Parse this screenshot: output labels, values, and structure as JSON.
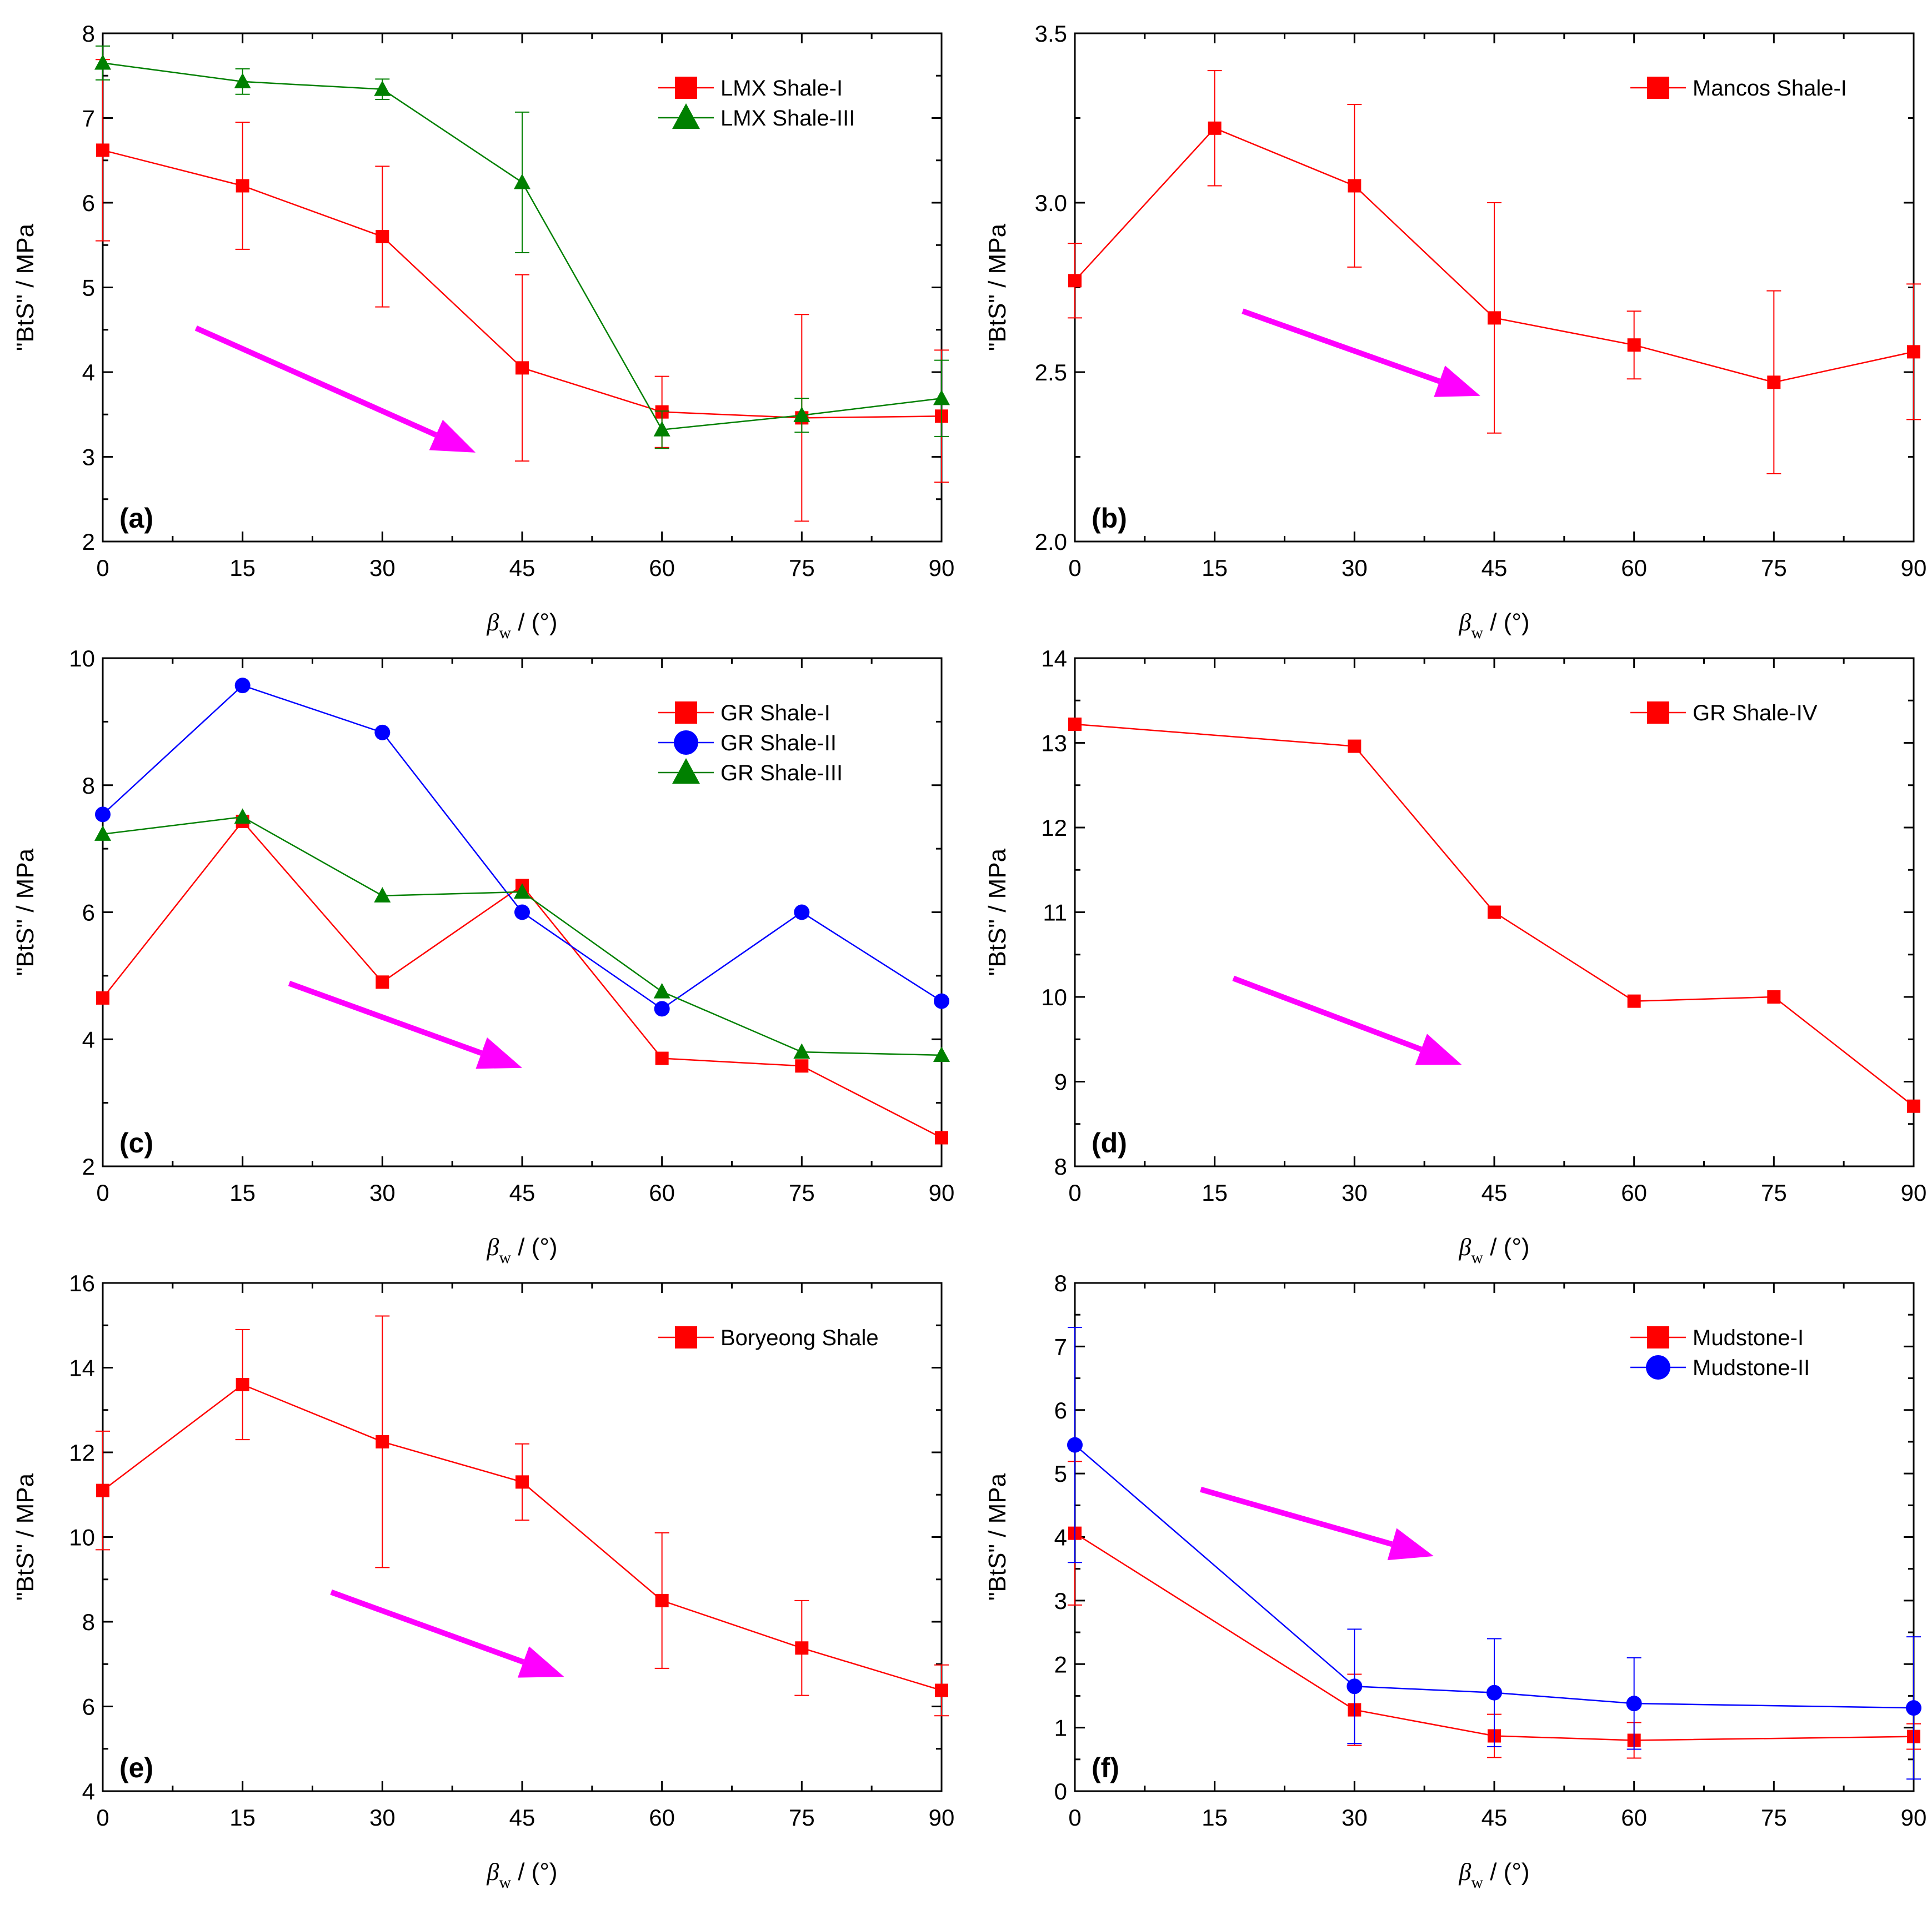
{
  "figure": {
    "x_axis_label": {
      "symbol": "β",
      "subscript": "w",
      "unit": " / (°)"
    },
    "y_axis_label": "\"BtS\" / MPa",
    "arrow_color": "#ff00ff"
  },
  "chart_data": [
    {
      "type": "line",
      "panel_label": "(a)",
      "xlim": [
        0,
        90
      ],
      "xticks": [
        0,
        15,
        30,
        45,
        60,
        75,
        90
      ],
      "ylim": [
        2,
        8
      ],
      "yticks": [
        2,
        3,
        4,
        5,
        6,
        7,
        8
      ],
      "ytick_labels": [
        "2",
        "3",
        "4",
        "5",
        "6",
        "7",
        "8"
      ],
      "legend_position": "top-right",
      "series": [
        {
          "name": "LMX Shale-I",
          "color": "#ff0000",
          "marker": "square",
          "x": [
            0,
            15,
            30,
            45,
            60,
            75,
            90
          ],
          "y": [
            6.62,
            6.2,
            5.6,
            4.05,
            3.53,
            3.46,
            3.48
          ],
          "err": [
            1.07,
            0.75,
            0.83,
            1.1,
            0.42,
            1.22,
            0.78
          ]
        },
        {
          "name": "LMX Shale-III",
          "color": "#008000",
          "marker": "triangle",
          "x": [
            0,
            15,
            30,
            45,
            60,
            75,
            90
          ],
          "y": [
            7.65,
            7.43,
            7.34,
            6.24,
            3.32,
            3.49,
            3.69
          ],
          "err": [
            0.2,
            0.15,
            0.12,
            0.83,
            0.22,
            0.2,
            0.45
          ]
        }
      ],
      "trend_arrow": [
        [
          10,
          4.52
        ],
        [
          40,
          3.05
        ]
      ]
    },
    {
      "type": "line",
      "panel_label": "(b)",
      "xlim": [
        0,
        90
      ],
      "xticks": [
        0,
        15,
        30,
        45,
        60,
        75,
        90
      ],
      "ylim": [
        2.0,
        3.5
      ],
      "yticks": [
        2.0,
        2.5,
        3.0,
        3.5
      ],
      "ytick_labels": [
        "2.0",
        "2.5",
        "3.0",
        "3.5"
      ],
      "legend_position": "top-right",
      "series": [
        {
          "name": "Mancos Shale-I",
          "color": "#ff0000",
          "marker": "square",
          "x": [
            0,
            15,
            30,
            45,
            60,
            75,
            90
          ],
          "y": [
            2.77,
            3.22,
            3.05,
            2.66,
            2.58,
            2.47,
            2.56
          ],
          "err": [
            0.11,
            0.17,
            0.24,
            0.34,
            0.1,
            0.27,
            0.2
          ]
        }
      ],
      "trend_arrow": [
        [
          18,
          2.68
        ],
        [
          43.5,
          2.43
        ]
      ]
    },
    {
      "type": "line",
      "panel_label": "(c)",
      "xlim": [
        0,
        90
      ],
      "xticks": [
        0,
        15,
        30,
        45,
        60,
        75,
        90
      ],
      "ylim": [
        2,
        10
      ],
      "yticks": [
        2,
        4,
        6,
        8,
        10
      ],
      "ytick_labels": [
        "2",
        "4",
        "6",
        "8",
        "10"
      ],
      "legend_position": "top-right",
      "series": [
        {
          "name": "GR Shale-I",
          "color": "#ff0000",
          "marker": "square",
          "x": [
            0,
            15,
            30,
            45,
            60,
            75,
            90
          ],
          "y": [
            4.65,
            7.43,
            4.9,
            6.42,
            3.7,
            3.58,
            2.45
          ]
        },
        {
          "name": "GR Shale-II",
          "color": "#0000ff",
          "marker": "circle",
          "x": [
            0,
            15,
            30,
            45,
            60,
            75,
            90
          ],
          "y": [
            7.54,
            9.57,
            8.83,
            6.0,
            4.48,
            6.0,
            4.6
          ]
        },
        {
          "name": "GR Shale-III",
          "color": "#008000",
          "marker": "triangle",
          "x": [
            0,
            15,
            30,
            45,
            60,
            75,
            90
          ],
          "y": [
            7.23,
            7.5,
            6.26,
            6.32,
            4.75,
            3.8,
            3.75
          ]
        }
      ],
      "trend_arrow": [
        [
          20,
          4.88
        ],
        [
          45,
          3.55
        ]
      ]
    },
    {
      "type": "line",
      "panel_label": "(d)",
      "xlim": [
        0,
        90
      ],
      "xticks": [
        0,
        15,
        30,
        45,
        60,
        75,
        90
      ],
      "ylim": [
        8,
        14
      ],
      "yticks": [
        8,
        9,
        10,
        11,
        12,
        13,
        14
      ],
      "ytick_labels": [
        "8",
        "9",
        "10",
        "11",
        "12",
        "13",
        "14"
      ],
      "legend_position": "top-right",
      "series": [
        {
          "name": "GR Shale-IV",
          "color": "#ff0000",
          "marker": "square",
          "x": [
            0,
            30,
            45,
            60,
            75,
            90
          ],
          "y": [
            13.22,
            12.96,
            11.0,
            9.95,
            10.0,
            8.71
          ]
        }
      ],
      "trend_arrow": [
        [
          17,
          10.22
        ],
        [
          41.5,
          9.2
        ]
      ]
    },
    {
      "type": "line",
      "panel_label": "(e)",
      "xlim": [
        0,
        90
      ],
      "xticks": [
        0,
        15,
        30,
        45,
        60,
        75,
        90
      ],
      "ylim": [
        4,
        16
      ],
      "yticks": [
        4,
        6,
        8,
        10,
        12,
        14,
        16
      ],
      "ytick_labels": [
        "4",
        "6",
        "8",
        "10",
        "12",
        "14",
        "16"
      ],
      "legend_position": "top-right",
      "series": [
        {
          "name": "Boryeong Shale",
          "color": "#ff0000",
          "marker": "square",
          "x": [
            0,
            15,
            30,
            45,
            60,
            75,
            90
          ],
          "y": [
            11.1,
            13.6,
            12.25,
            11.3,
            8.5,
            7.38,
            6.38
          ],
          "err": [
            1.4,
            1.3,
            2.97,
            0.9,
            1.6,
            1.12,
            0.6
          ]
        }
      ],
      "trend_arrow": [
        [
          24.5,
          8.7
        ],
        [
          49.5,
          6.7
        ]
      ]
    },
    {
      "type": "line",
      "panel_label": "(f)",
      "xlim": [
        0,
        90
      ],
      "xticks": [
        0,
        15,
        30,
        45,
        60,
        75,
        90
      ],
      "ylim": [
        0,
        8
      ],
      "yticks": [
        0,
        1,
        2,
        3,
        4,
        5,
        6,
        7,
        8
      ],
      "ytick_labels": [
        "0",
        "1",
        "2",
        "3",
        "4",
        "5",
        "6",
        "7",
        "8"
      ],
      "legend_position": "top-right",
      "series": [
        {
          "name": "Mudstone-I",
          "color": "#ff0000",
          "marker": "square",
          "x": [
            0,
            30,
            45,
            60,
            90
          ],
          "y": [
            4.06,
            1.28,
            0.87,
            0.8,
            0.86
          ],
          "err": [
            1.13,
            0.56,
            0.34,
            0.28,
            0.2
          ]
        },
        {
          "name": "Mudstone-II",
          "color": "#0000ff",
          "marker": "circle",
          "x": [
            0,
            30,
            45,
            60,
            90
          ],
          "y": [
            5.45,
            1.65,
            1.55,
            1.38,
            1.31
          ],
          "err": [
            1.85,
            0.9,
            0.85,
            0.72,
            1.12
          ]
        }
      ],
      "trend_arrow": [
        [
          13.5,
          4.75
        ],
        [
          38.5,
          3.7
        ]
      ]
    }
  ]
}
